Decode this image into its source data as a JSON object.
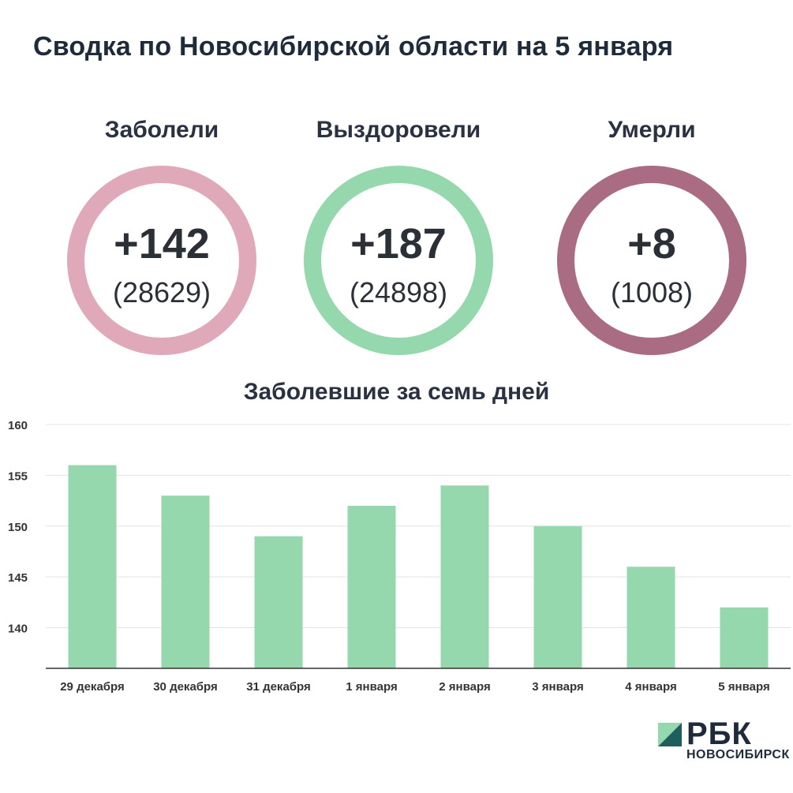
{
  "title": "Сводка по Новосибирской области на 5 января",
  "stats": [
    {
      "label": "Заболели",
      "main": "+142",
      "sub": "(28629)",
      "color": "#dfa9b9"
    },
    {
      "label": "Выздоровели",
      "main": "+187",
      "sub": "(24898)",
      "color": "#95d8ae"
    },
    {
      "label": "Умерли",
      "main": "+8",
      "sub": "(1008)",
      "color": "#a96c82"
    }
  ],
  "chart_data": {
    "type": "bar",
    "title": "Заболевшие за семь дней",
    "categories": [
      "29 декабря",
      "30 декабря",
      "31 декабря",
      "1 января",
      "2 января",
      "3 января",
      "4 января",
      "5 января"
    ],
    "values": [
      156,
      153,
      149,
      152,
      154,
      150,
      146,
      142
    ],
    "ylim": [
      136,
      160
    ],
    "yticks": [
      140,
      145,
      150,
      155,
      160
    ],
    "grid": true,
    "bar_color": "#95d8ae"
  },
  "brand": {
    "name": "РБК",
    "city": "НОВОСИБИРСК",
    "mark_colors": [
      "#95d8ae",
      "#1f5e5e"
    ]
  }
}
